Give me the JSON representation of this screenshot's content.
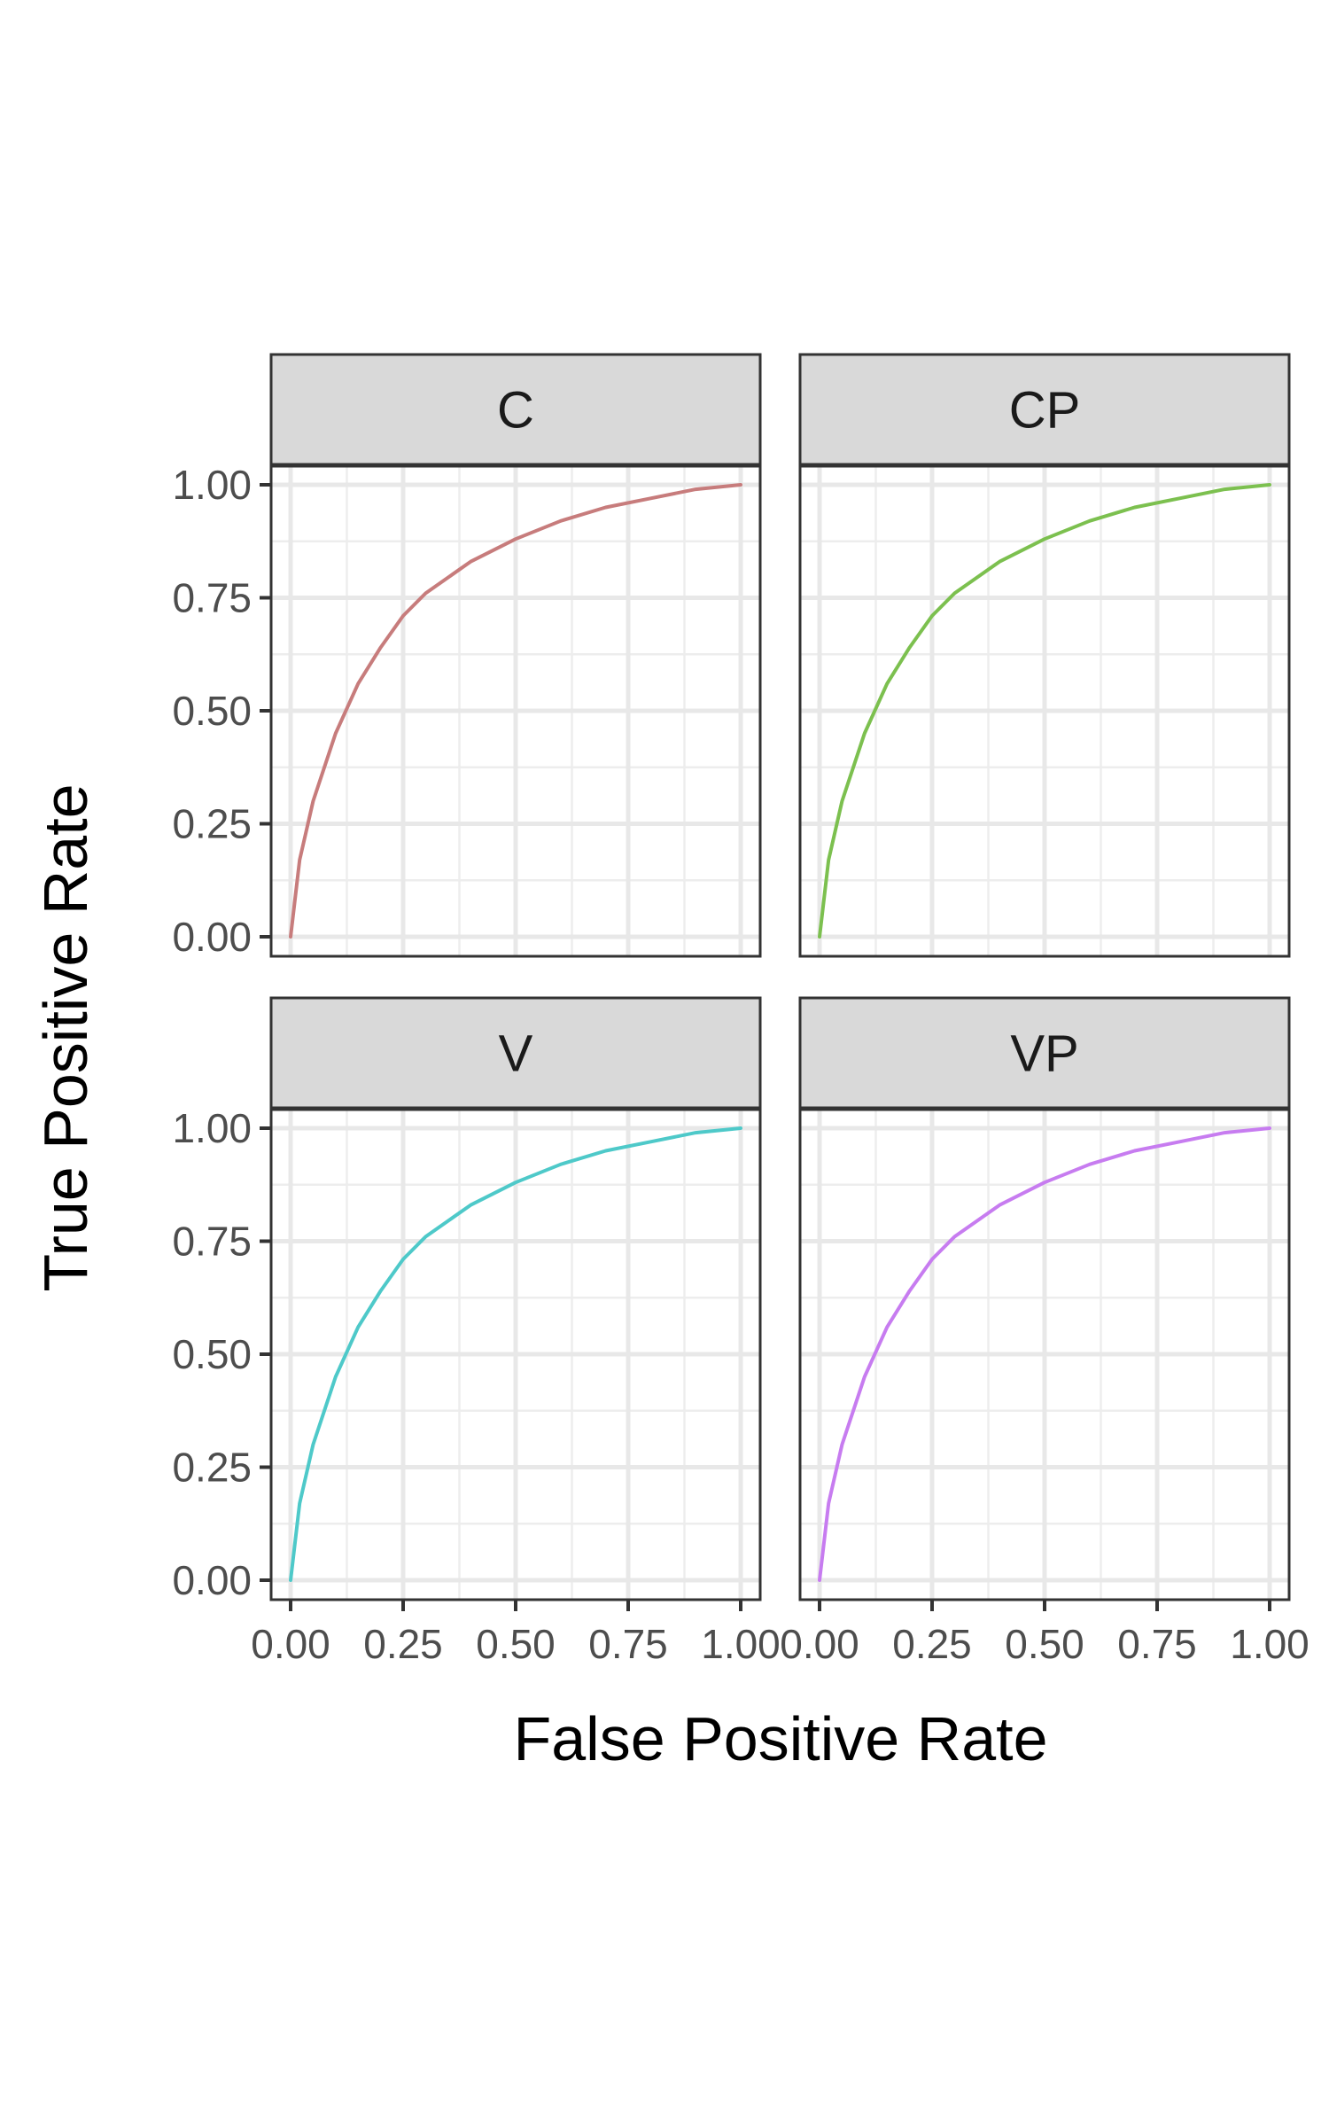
{
  "chart_data": {
    "type": "line",
    "facet_layout": "2x2",
    "xlabel": "False Positive Rate",
    "ylabel": "True Positive Rate",
    "xlim": [
      0,
      1
    ],
    "ylim": [
      0,
      1
    ],
    "x_ticks": [
      "0.00",
      "0.25",
      "0.50",
      "0.75",
      "1.00"
    ],
    "y_ticks": [
      "0.00",
      "0.25",
      "0.50",
      "0.75",
      "1.00"
    ],
    "grid": true,
    "legend": "none",
    "panels": [
      {
        "label": "C",
        "color": "#c77c7c",
        "x": [
          0,
          0.02,
          0.05,
          0.1,
          0.15,
          0.2,
          0.25,
          0.3,
          0.4,
          0.5,
          0.6,
          0.7,
          0.8,
          0.9,
          1.0
        ],
        "y": [
          0,
          0.17,
          0.3,
          0.45,
          0.56,
          0.64,
          0.71,
          0.76,
          0.83,
          0.88,
          0.92,
          0.95,
          0.97,
          0.99,
          1.0
        ]
      },
      {
        "label": "CP",
        "color": "#7cc04f",
        "x": [
          0,
          0.02,
          0.05,
          0.1,
          0.15,
          0.2,
          0.25,
          0.3,
          0.4,
          0.5,
          0.6,
          0.7,
          0.8,
          0.9,
          1.0
        ],
        "y": [
          0,
          0.17,
          0.3,
          0.45,
          0.56,
          0.64,
          0.71,
          0.76,
          0.83,
          0.88,
          0.92,
          0.95,
          0.97,
          0.99,
          1.0
        ]
      },
      {
        "label": "V",
        "color": "#4ec9c9",
        "x": [
          0,
          0.02,
          0.05,
          0.1,
          0.15,
          0.2,
          0.25,
          0.3,
          0.4,
          0.5,
          0.6,
          0.7,
          0.8,
          0.9,
          1.0
        ],
        "y": [
          0,
          0.17,
          0.3,
          0.45,
          0.56,
          0.64,
          0.71,
          0.76,
          0.83,
          0.88,
          0.92,
          0.95,
          0.97,
          0.99,
          1.0
        ]
      },
      {
        "label": "VP",
        "color": "#c77cf0",
        "x": [
          0,
          0.02,
          0.05,
          0.1,
          0.15,
          0.2,
          0.25,
          0.3,
          0.4,
          0.5,
          0.6,
          0.7,
          0.8,
          0.9,
          1.0
        ],
        "y": [
          0,
          0.17,
          0.3,
          0.45,
          0.56,
          0.64,
          0.71,
          0.76,
          0.83,
          0.88,
          0.92,
          0.95,
          0.97,
          0.99,
          1.0
        ]
      }
    ]
  }
}
